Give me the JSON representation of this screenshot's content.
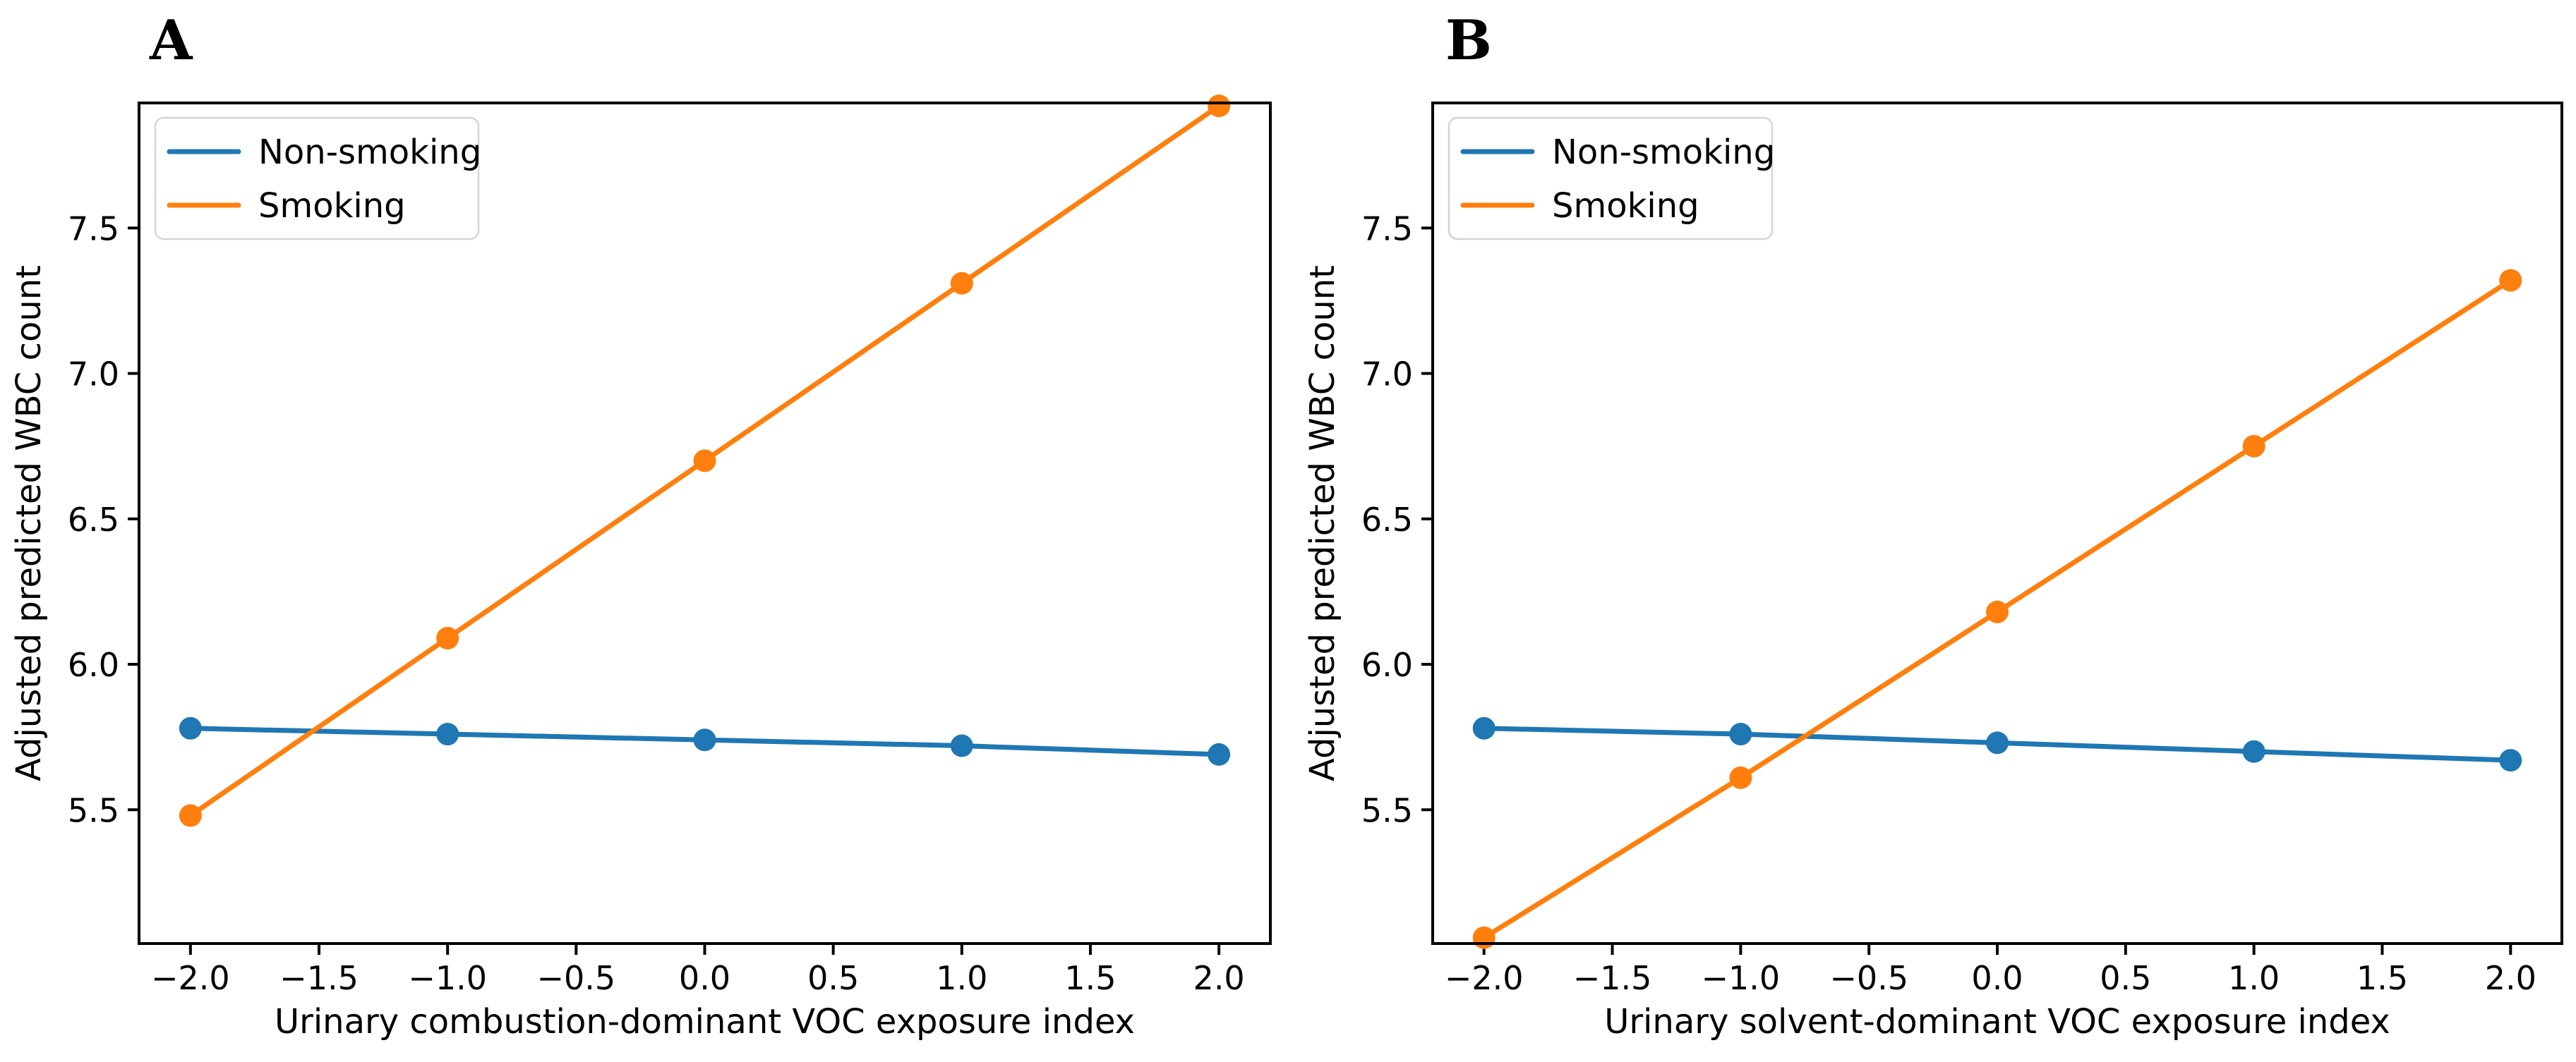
{
  "figure": {
    "background": "#ffffff",
    "text_color": "#000000",
    "panel_letters": [
      "A",
      "B"
    ]
  },
  "legend": {
    "position": "upper left",
    "items": [
      {
        "label": "Non-smoking",
        "color": "#1f77b4"
      },
      {
        "label": "Smoking",
        "color": "#ff7f0e"
      }
    ]
  },
  "chart_data": [
    {
      "type": "line",
      "panel_label": "A",
      "xlabel": "Urinary combustion-dominant VOC exposure index",
      "ylabel": "Adjusted predicted WBC count",
      "x": [
        -2.0,
        -1.0,
        0.0,
        1.0,
        2.0
      ],
      "series": [
        {
          "name": "Non-smoking",
          "color": "#1f77b4",
          "values": [
            5.78,
            5.76,
            5.74,
            5.72,
            5.69
          ]
        },
        {
          "name": "Smoking",
          "color": "#ff7f0e",
          "values": [
            5.48,
            6.09,
            6.7,
            7.31,
            7.92
          ]
        }
      ],
      "xticks": [
        -2.0,
        -1.5,
        -1.0,
        -0.5,
        0.0,
        0.5,
        1.0,
        1.5,
        2.0
      ],
      "yticks": [
        5.5,
        6.0,
        6.5,
        7.0,
        7.5
      ],
      "xlim": [
        -2.2,
        2.2
      ],
      "ylim": [
        5.04,
        7.93
      ],
      "grid": false,
      "legend_position": "upper left"
    },
    {
      "type": "line",
      "panel_label": "B",
      "xlabel": "Urinary solvent-dominant VOC exposure index",
      "ylabel": "Adjusted predicted WBC count",
      "x": [
        -2.0,
        -1.0,
        0.0,
        1.0,
        2.0
      ],
      "series": [
        {
          "name": "Non-smoking",
          "color": "#1f77b4",
          "values": [
            5.78,
            5.76,
            5.73,
            5.7,
            5.67
          ]
        },
        {
          "name": "Smoking",
          "color": "#ff7f0e",
          "values": [
            5.06,
            5.61,
            6.18,
            6.75,
            7.32
          ]
        }
      ],
      "xticks": [
        -2.0,
        -1.5,
        -1.0,
        -0.5,
        0.0,
        0.5,
        1.0,
        1.5,
        2.0
      ],
      "yticks": [
        5.5,
        6.0,
        6.5,
        7.0,
        7.5
      ],
      "xlim": [
        -2.2,
        2.2
      ],
      "ylim": [
        5.04,
        7.93
      ],
      "grid": false,
      "legend_position": "upper left"
    }
  ]
}
